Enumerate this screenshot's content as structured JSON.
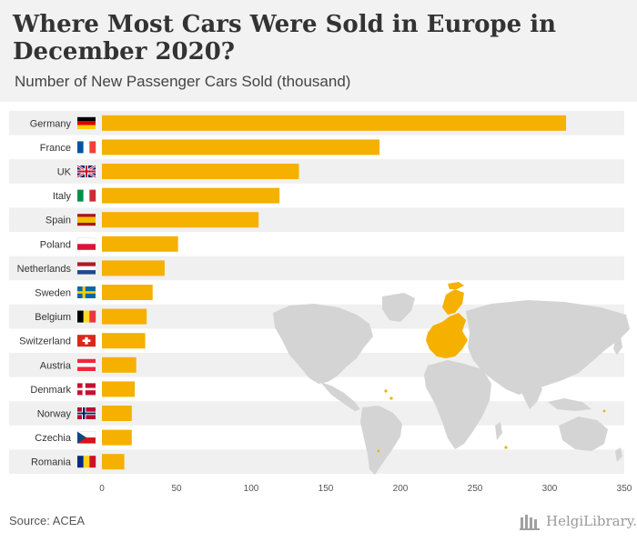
{
  "header": {
    "title": "Where Most Cars Were Sold in Europe in December 2020?",
    "subtitle": "Number of New Passenger Cars Sold (thousand)"
  },
  "footer": {
    "source": "Source: ACEA",
    "logo_text": "HelgiLibrary."
  },
  "colors": {
    "bar": "#f5b000",
    "stripe": "#f0f0f0",
    "map_land": "#d4d4d4",
    "map_highlight": "#f5b000"
  },
  "chart_data": {
    "type": "bar",
    "orientation": "horizontal",
    "categories": [
      "Germany",
      "France",
      "UK",
      "Italy",
      "Spain",
      "Poland",
      "Netherlands",
      "Sweden",
      "Belgium",
      "Switzerland",
      "Austria",
      "Denmark",
      "Norway",
      "Czechia",
      "Romania"
    ],
    "values": [
      311,
      186,
      132,
      119,
      105,
      51,
      42,
      34,
      30,
      29,
      23,
      22,
      20,
      20,
      15
    ],
    "xlim": [
      0,
      350
    ],
    "xticks": [
      0,
      50,
      100,
      150,
      200,
      250,
      300,
      350
    ],
    "flags": [
      "germany-flag",
      "france-flag",
      "uk-flag",
      "italy-flag",
      "spain-flag",
      "poland-flag",
      "netherlands-flag",
      "sweden-flag",
      "belgium-flag",
      "switzerland-flag",
      "austria-flag",
      "denmark-flag",
      "norway-flag",
      "czechia-flag",
      "romania-flag"
    ],
    "grid": false
  }
}
